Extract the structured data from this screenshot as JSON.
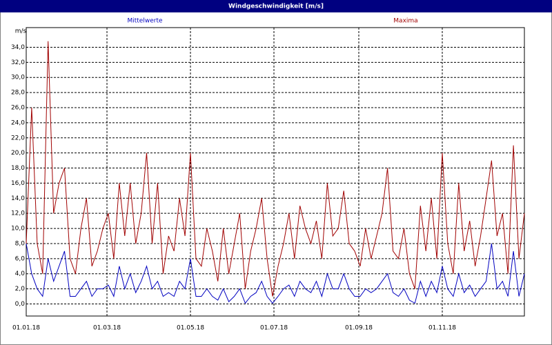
{
  "window_title": "Windgeschwindigkeit [m/s]",
  "chart_data": {
    "type": "line",
    "y_label": "m/s",
    "x": [
      "01.01.18",
      "05.01.18",
      "09.01.18",
      "13.01.18",
      "17.01.18",
      "21.01.18",
      "25.01.18",
      "29.01.18",
      "02.02.18",
      "06.02.18",
      "10.02.18",
      "14.02.18",
      "18.02.18",
      "22.02.18",
      "26.02.18",
      "02.03.18",
      "06.03.18",
      "10.03.18",
      "14.03.18",
      "18.03.18",
      "22.03.18",
      "26.03.18",
      "30.03.18",
      "03.04.18",
      "07.04.18",
      "11.04.18",
      "15.04.18",
      "19.04.18",
      "23.04.18",
      "27.04.18",
      "01.05.18",
      "05.05.18",
      "09.05.18",
      "13.05.18",
      "17.05.18",
      "21.05.18",
      "25.05.18",
      "29.05.18",
      "02.06.18",
      "06.06.18",
      "10.06.18",
      "14.06.18",
      "18.06.18",
      "22.06.18",
      "26.06.18",
      "30.06.18",
      "04.07.18",
      "08.07.18",
      "12.07.18",
      "16.07.18",
      "20.07.18",
      "24.07.18",
      "28.07.18",
      "01.08.18",
      "05.08.18",
      "09.08.18",
      "13.08.18",
      "17.08.18",
      "21.08.18",
      "25.08.18",
      "29.08.18",
      "02.09.18",
      "06.09.18",
      "10.09.18",
      "14.09.18",
      "18.09.18",
      "22.09.18",
      "26.09.18",
      "30.09.18",
      "04.10.18",
      "08.10.18",
      "12.10.18",
      "16.10.18",
      "20.10.18",
      "24.10.18",
      "28.10.18",
      "01.11.18",
      "05.11.18",
      "09.11.18",
      "13.11.18",
      "17.11.18",
      "21.11.18",
      "25.11.18",
      "29.11.18",
      "03.12.18",
      "07.12.18",
      "11.12.18",
      "15.12.18",
      "19.12.18",
      "23.12.18",
      "27.12.18",
      "31.12.18"
    ],
    "series": [
      {
        "name": "Mittelwerte",
        "color": "#0000c0",
        "values": [
          8,
          4,
          2,
          1,
          6,
          3,
          5,
          7,
          1,
          1,
          2,
          3,
          1,
          2,
          2,
          2.5,
          1,
          5,
          2,
          4,
          1.5,
          3,
          5,
          2,
          3,
          1,
          1.5,
          1,
          3,
          2,
          6,
          1,
          1,
          2,
          1,
          0.5,
          2,
          0.3,
          1,
          2,
          0.1,
          1,
          1.5,
          3,
          1,
          0.1,
          1,
          2,
          2.5,
          1,
          3,
          2,
          1.5,
          3,
          1,
          4,
          2,
          2,
          4,
          2,
          1,
          1,
          2,
          1.5,
          2,
          3,
          4,
          1.5,
          1,
          2,
          0.5,
          0.1,
          3,
          1,
          3,
          1.5,
          5,
          2,
          1,
          4,
          1.5,
          2.5,
          1,
          2,
          3,
          8,
          2,
          3,
          1,
          7,
          1,
          4
        ]
      },
      {
        "name": "Maxima",
        "color": "#a00000",
        "values": [
          8,
          26,
          8,
          4,
          34.8,
          12,
          16,
          18,
          6,
          4,
          10,
          14,
          5,
          7,
          10,
          12,
          6,
          16,
          9,
          16,
          8,
          12,
          20,
          8,
          16,
          4,
          9,
          7,
          14,
          9,
          20,
          6,
          5,
          10,
          7,
          3,
          10,
          4,
          8,
          12,
          2,
          7,
          10,
          14,
          6,
          1,
          5,
          8,
          12,
          6,
          13,
          10,
          8,
          11,
          6,
          16,
          9,
          10,
          15,
          8,
          7,
          5,
          10,
          6,
          9,
          12,
          18,
          7,
          6,
          10,
          4,
          2,
          13,
          7,
          14,
          6,
          20,
          8,
          4,
          16,
          7,
          11,
          5,
          9,
          14,
          19,
          9,
          12,
          4,
          21,
          6,
          12
        ]
      }
    ],
    "xlim": [
      "01.01.18",
      "31.12.18"
    ],
    "xticks": [
      "01.01.18",
      "01.03.18",
      "01.05.18",
      "01.07.18",
      "01.09.18",
      "01.11.18"
    ],
    "ylim": [
      -1.6,
      36.6
    ],
    "yticks": [
      {
        "value": 0,
        "label": "0,0"
      },
      {
        "value": 2,
        "label": "2,0"
      },
      {
        "value": 4,
        "label": "4,0"
      },
      {
        "value": 6,
        "label": "6,0"
      },
      {
        "value": 8,
        "label": "8,0"
      },
      {
        "value": 10,
        "label": "10,0"
      },
      {
        "value": 12,
        "label": "12,0"
      },
      {
        "value": 14,
        "label": "14,0"
      },
      {
        "value": 16,
        "label": "16,0"
      },
      {
        "value": 18,
        "label": "18,0"
      },
      {
        "value": 20,
        "label": "20,0"
      },
      {
        "value": 22,
        "label": "22,0"
      },
      {
        "value": 24,
        "label": "24,0"
      },
      {
        "value": 26,
        "label": "26,0"
      },
      {
        "value": 28,
        "label": "28,0"
      },
      {
        "value": 30,
        "label": "30,0"
      },
      {
        "value": 32,
        "label": "32,0"
      },
      {
        "value": 34,
        "label": "34,0"
      }
    ],
    "grid": true
  }
}
